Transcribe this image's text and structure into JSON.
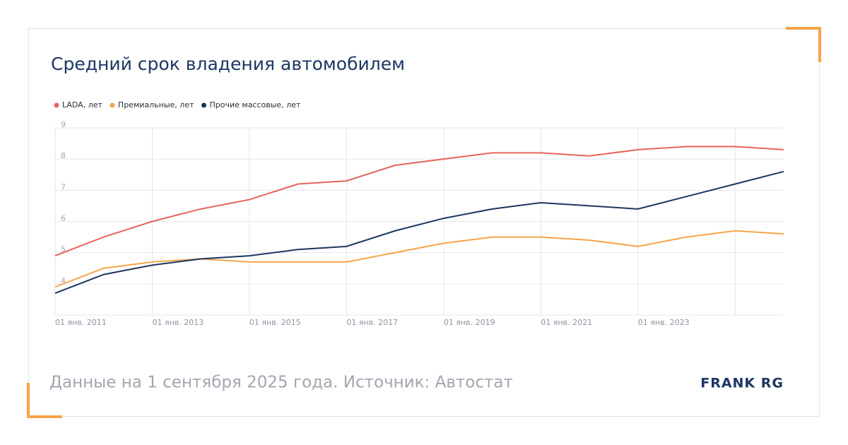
{
  "chart_data": {
    "type": "line",
    "title": "Средний срок владения автомобилем",
    "categories": [
      "01 янв. 2011",
      null,
      "01 янв. 2013",
      null,
      "01 янв. 2015",
      null,
      "01 янв. 2017",
      null,
      "01 янв. 2019",
      null,
      "01 янв. 2021",
      null,
      "01 янв. 2023",
      null,
      null,
      null
    ],
    "series": [
      {
        "name": "LADA, лет",
        "color": "#e5645a",
        "values": [
          4.9,
          5.5,
          6.0,
          6.4,
          6.7,
          7.2,
          7.3,
          7.8,
          8.0,
          8.2,
          8.2,
          8.1,
          8.3,
          8.4,
          8.4,
          8.3
        ]
      },
      {
        "name": "Премиальные, лет",
        "color": "#f5a54a",
        "values": [
          3.9,
          4.5,
          4.7,
          4.8,
          4.7,
          4.7,
          4.7,
          5.0,
          5.3,
          5.5,
          5.5,
          5.4,
          5.2,
          5.5,
          5.7,
          5.6
        ]
      },
      {
        "name": "Прочие массовые, лет",
        "color": "#1b3660",
        "values": [
          3.7,
          4.3,
          4.6,
          4.8,
          4.9,
          5.1,
          5.2,
          5.7,
          6.1,
          6.4,
          6.6,
          6.5,
          6.4,
          6.8,
          7.2,
          7.6
        ]
      }
    ],
    "ylim": [
      3,
      9
    ],
    "yticks": [
      4,
      5,
      6,
      7,
      8,
      9
    ],
    "grid": true,
    "legend": "top-left",
    "footnote": "Данные на 1 сентября 2025 года. Источник: Автостат",
    "brand": "FRANK RG"
  }
}
